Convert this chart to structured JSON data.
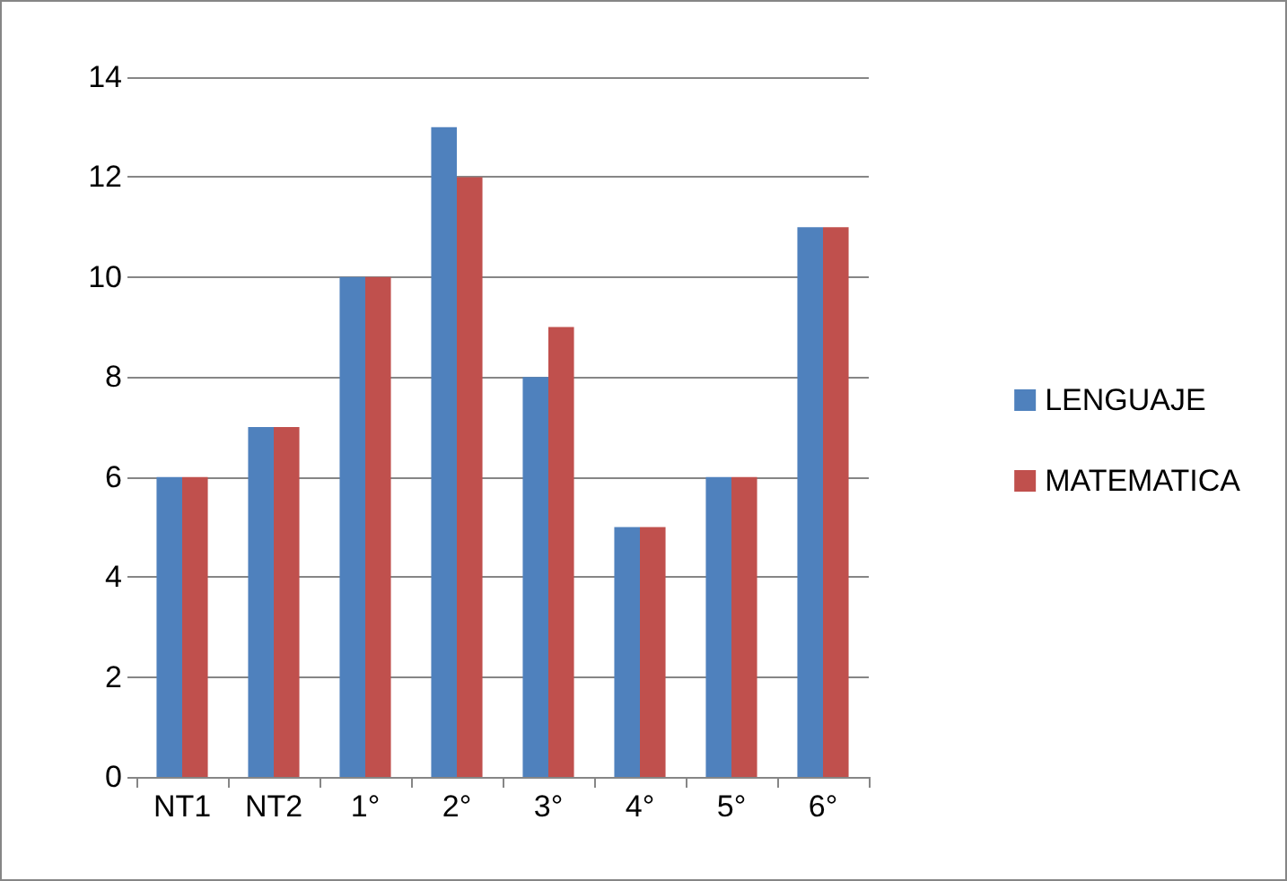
{
  "chart_data": {
    "type": "bar",
    "categories": [
      "NT1",
      "NT2",
      "1°",
      "2°",
      "3°",
      "4°",
      "5°",
      "6°"
    ],
    "series": [
      {
        "name": "LENGUAJE",
        "color": "#4f81bd",
        "values": [
          6,
          7,
          10,
          13,
          8,
          5,
          6,
          11
        ]
      },
      {
        "name": "MATEMATICA",
        "color": "#c0504d",
        "values": [
          6,
          7,
          10,
          12,
          9,
          5,
          6,
          11
        ]
      }
    ],
    "ylim": [
      0,
      14
    ],
    "yticks": [
      0,
      2,
      4,
      6,
      8,
      10,
      12,
      14
    ],
    "grid": "y",
    "legend": "right"
  }
}
